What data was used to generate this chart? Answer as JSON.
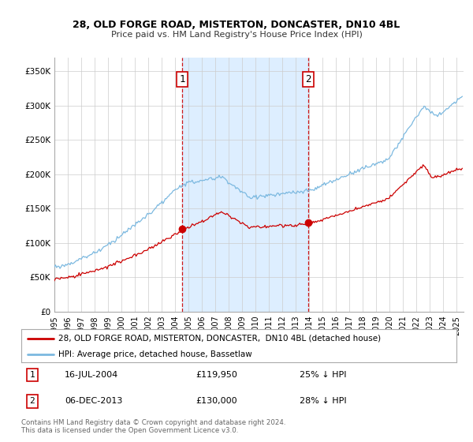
{
  "title1": "28, OLD FORGE ROAD, MISTERTON, DONCASTER, DN10 4BL",
  "title2": "Price paid vs. HM Land Registry's House Price Index (HPI)",
  "legend_line1": "28, OLD FORGE ROAD, MISTERTON, DONCASTER,  DN10 4BL (detached house)",
  "legend_line2": "HPI: Average price, detached house, Bassetlaw",
  "annotation1_date": "16-JUL-2004",
  "annotation1_price": "£119,950",
  "annotation1_hpi": "25% ↓ HPI",
  "annotation2_date": "06-DEC-2013",
  "annotation2_price": "£130,000",
  "annotation2_hpi": "28% ↓ HPI",
  "sale1_year": 2004.54,
  "sale1_price": 119950,
  "sale2_year": 2013.92,
  "sale2_price": 130000,
  "hpi_color": "#7cb9e0",
  "price_color": "#cc0000",
  "highlight_color": "#ddeeff",
  "vline_color": "#cc0000",
  "grid_color": "#cccccc",
  "background_color": "#ffffff",
  "ylim": [
    0,
    370000
  ],
  "xlim_start": 1995.0,
  "xlim_end": 2025.5,
  "footer": "Contains HM Land Registry data © Crown copyright and database right 2024.\nThis data is licensed under the Open Government Licence v3.0."
}
